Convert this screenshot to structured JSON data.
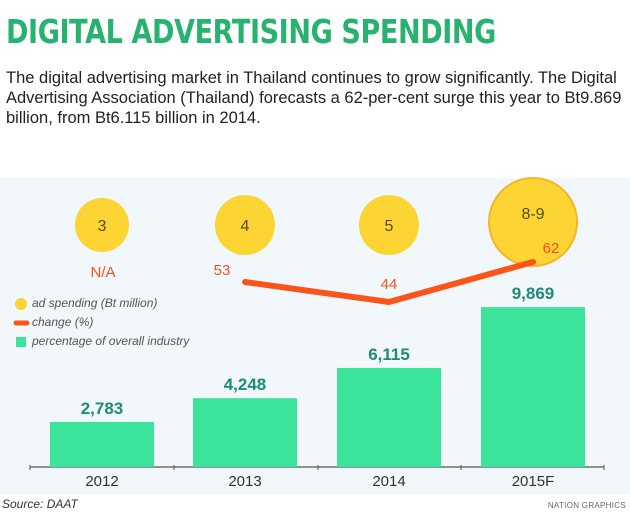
{
  "title": "DIGITAL ADVERTISING SPENDING",
  "description": "The digital advertising market in Thailand continues to grow significantly. The Digital Advertising Association (Thailand) forecasts a 62-per-cent surge this year to Bt9.869 billion, from Bt6.115 billion in 2014.",
  "source": "Source: DAAT",
  "credit": "NATION GRAPHICS",
  "colors": {
    "title": "#27b36f",
    "bar": "#3ce39a",
    "bar_label": "#1f8a78",
    "circle": "#fcd535",
    "line": "#fb5418",
    "line_label": "#f0541e"
  },
  "chart_data": {
    "type": "bar",
    "categories": [
      "2012",
      "2013",
      "2014",
      "2015F"
    ],
    "legend": [
      {
        "label": "ad spending (Bt million)",
        "mark": "circle"
      },
      {
        "label": "change (%)",
        "mark": "line"
      },
      {
        "label": "percentage of overall industry",
        "mark": "bar"
      }
    ],
    "bars": {
      "values": [
        2783,
        4248,
        6115,
        9869
      ],
      "labels": [
        "2,783",
        "4,248",
        "6,115",
        "9,869"
      ]
    },
    "circles": {
      "labels": [
        "3",
        "4",
        "5",
        "8-9"
      ]
    },
    "change": {
      "values": [
        null,
        53,
        44,
        62
      ],
      "labels": [
        "N/A",
        "53",
        "44",
        "62"
      ]
    }
  }
}
